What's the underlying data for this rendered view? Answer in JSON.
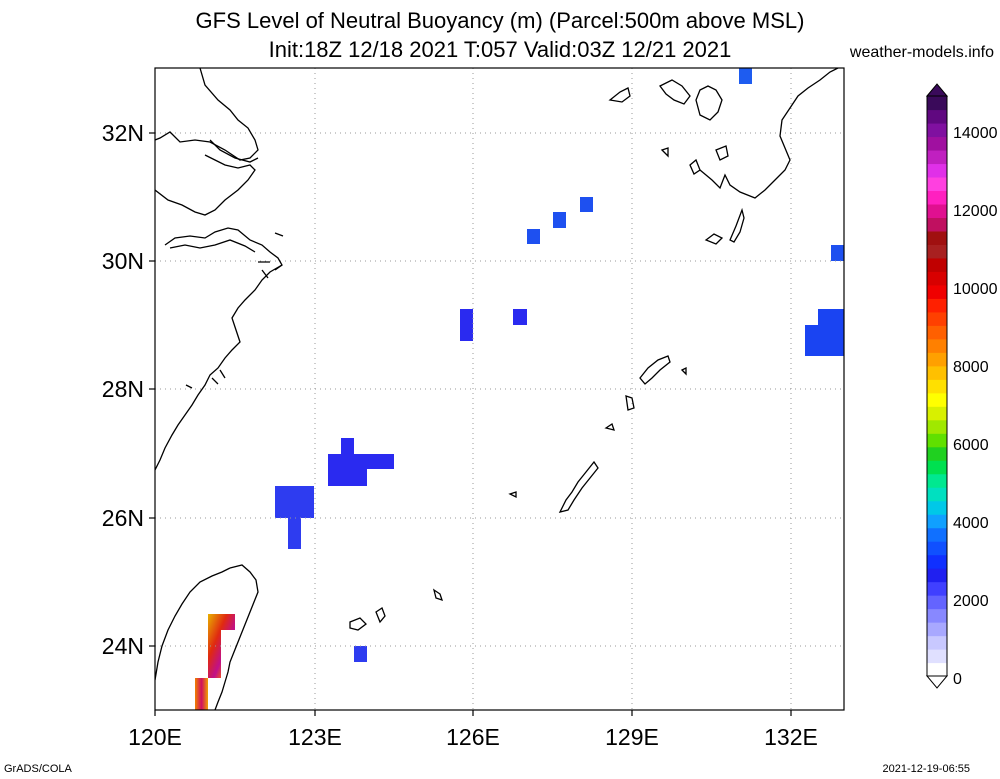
{
  "title_line1": "GFS Level of Neutral Buoyancy (m) (Parcel:500m above MSL)",
  "title_line2": "Init:18Z 12/18 2021 T:057 Valid:03Z 12/21 2021",
  "site": "weather-models.info",
  "footer_left": "GrADS/COLA",
  "footer_right": "2021-12-19-06:55",
  "lon_labels": [
    "120E",
    "123E",
    "126E",
    "129E",
    "132E"
  ],
  "lat_labels": [
    "32N",
    "30N",
    "28N",
    "26N",
    "24N"
  ],
  "colorbar_labels": [
    "0",
    "2000",
    "4000",
    "6000",
    "8000",
    "10000",
    "12000",
    "14000"
  ],
  "colors": {
    "low_blue": "#2a2af0",
    "mid_blue": "#1a3cf5",
    "deep_blue": "#1040ff",
    "sky_blue": "#1e5cf0"
  }
}
